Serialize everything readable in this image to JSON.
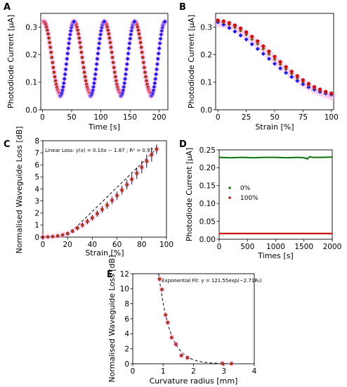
{
  "chart_data": [
    {
      "panel_label": "A",
      "type": "scatter",
      "xlabel": "Time [s]",
      "ylabel": "Photodiode Current [µA]",
      "xlim": [
        -3,
        215
      ],
      "ylim": [
        0,
        0.35
      ],
      "xticks": [
        0,
        50,
        100,
        150,
        200
      ],
      "xtick_labels": [
        "0",
        "50",
        "100",
        "150",
        "200"
      ],
      "yticks": [
        0,
        0.1,
        0.2,
        0.3
      ],
      "ytick_labels": [
        "0.0",
        "0.1",
        "0.2",
        "0.3"
      ],
      "cycle": {
        "period": 52,
        "peak_times": [
          2,
          54,
          106,
          158,
          210
        ],
        "trough_times": [
          30,
          82,
          134,
          186
        ],
        "peak_value": 0.32,
        "red_trough_value": 0.06,
        "blue_trough_value": 0.05,
        "samples_per_segment": 22
      },
      "series": [
        {
          "role": "loading",
          "color": "#cc1111",
          "marker": "circle",
          "shadow": "#f4a7e8"
        },
        {
          "role": "loading-overlay",
          "color": "#7a5a10",
          "marker": "diamond"
        },
        {
          "role": "unloading",
          "color": "#1a1ae6",
          "marker": "diamond",
          "shadow": "#f4a7e8"
        }
      ]
    },
    {
      "panel_label": "B",
      "type": "scatter",
      "xlabel": "Strain [%]",
      "ylabel": "Photodiode Current [µA]",
      "xlim": [
        -2,
        102
      ],
      "ylim": [
        0,
        0.35
      ],
      "xticks": [
        0,
        25,
        50,
        75,
        100
      ],
      "xtick_labels": [
        "0",
        "25",
        "50",
        "75",
        "100"
      ],
      "yticks": [
        0,
        0.1,
        0.2,
        0.3
      ],
      "ytick_labels": [
        "0.0",
        "0.1",
        "0.2",
        "0.3"
      ],
      "x": [
        0,
        5,
        10,
        15,
        20,
        25,
        30,
        35,
        40,
        45,
        50,
        55,
        60,
        65,
        70,
        75,
        80,
        85,
        90,
        95,
        100
      ],
      "series": [
        {
          "role": "upper",
          "color": "#cc1111",
          "values": [
            0.325,
            0.322,
            0.316,
            0.307,
            0.296,
            0.282,
            0.266,
            0.249,
            0.231,
            0.212,
            0.193,
            0.174,
            0.156,
            0.139,
            0.123,
            0.108,
            0.095,
            0.083,
            0.074,
            0.066,
            0.06
          ]
        },
        {
          "role": "middle",
          "color": "#7a5a10",
          "values": [
            0.322,
            0.317,
            0.309,
            0.299,
            0.287,
            0.273,
            0.256,
            0.239,
            0.221,
            0.202,
            0.183,
            0.165,
            0.147,
            0.131,
            0.115,
            0.101,
            0.089,
            0.078,
            0.069,
            0.062,
            0.057
          ]
        },
        {
          "role": "lower",
          "color": "#1a1ae6",
          "values": [
            0.318,
            0.309,
            0.297,
            0.284,
            0.27,
            0.255,
            0.238,
            0.221,
            0.203,
            0.185,
            0.167,
            0.15,
            0.134,
            0.119,
            0.105,
            0.093,
            0.082,
            0.073,
            0.065,
            0.059,
            0.055
          ]
        }
      ]
    },
    {
      "panel_label": "C",
      "type": "scatter",
      "xlabel": "Strain [%]",
      "ylabel": "Normalised Waveguide Loss [dB]",
      "xlim": [
        0,
        100
      ],
      "ylim": [
        0,
        8
      ],
      "xticks": [
        0,
        20,
        40,
        60,
        80,
        100
      ],
      "xtick_labels": [
        "0",
        "20",
        "40",
        "60",
        "80",
        "100"
      ],
      "yticks": [
        0,
        1,
        2,
        3,
        4,
        5,
        6,
        7,
        8
      ],
      "ytick_labels": [
        "0",
        "1",
        "2",
        "3",
        "4",
        "5",
        "6",
        "7",
        "8"
      ],
      "annotation": "Linear Loss: y(x) = 0.10x − 1.87 ; R² = 0.97",
      "fit": {
        "slope": 0.1,
        "intercept": -1.87,
        "x_range": [
          20,
          92
        ],
        "style": "dashed"
      },
      "x": [
        0,
        4,
        8,
        12,
        16,
        20,
        24,
        28,
        32,
        36,
        40,
        44,
        48,
        52,
        56,
        60,
        64,
        68,
        72,
        76,
        80,
        84,
        88,
        92
      ],
      "values": [
        0.0,
        0.02,
        0.05,
        0.1,
        0.18,
        0.3,
        0.5,
        0.75,
        1.0,
        1.3,
        1.6,
        1.95,
        2.3,
        2.65,
        3.05,
        3.45,
        3.9,
        4.35,
        4.8,
        5.3,
        5.8,
        6.3,
        6.85,
        7.3
      ],
      "errors": [
        0.05,
        0.05,
        0.06,
        0.08,
        0.1,
        0.12,
        0.15,
        0.18,
        0.2,
        0.22,
        0.24,
        0.26,
        0.28,
        0.3,
        0.32,
        0.34,
        0.36,
        0.4,
        0.44,
        0.48,
        0.52,
        0.56,
        0.6,
        0.4
      ],
      "colors": {
        "points": "#cc1111",
        "overlay": "#7a5a10",
        "shadow": "#f4a7e8",
        "error_bars": "#000000"
      }
    },
    {
      "panel_label": "D",
      "type": "line",
      "xlabel": "Times [s]",
      "ylabel": "Photodiode Current [µA]",
      "xlim": [
        0,
        2000
      ],
      "ylim": [
        0,
        0.25
      ],
      "xticks": [
        0,
        500,
        1000,
        1500,
        2000
      ],
      "xtick_labels": [
        "0",
        "500",
        "1000",
        "1500",
        "2000"
      ],
      "yticks": [
        0,
        0.05,
        0.1,
        0.15,
        0.2,
        0.25
      ],
      "ytick_labels": [
        "0.00",
        "0.05",
        "0.10",
        "0.15",
        "0.20",
        "0.25"
      ],
      "legend_placement": "center-left",
      "series": [
        {
          "name": "0%",
          "color": "#1a7a1a",
          "x": [
            0,
            200,
            400,
            600,
            800,
            1000,
            1200,
            1400,
            1500,
            1560,
            1600,
            1650,
            1800,
            2000
          ],
          "values": [
            0.229,
            0.228,
            0.229,
            0.228,
            0.229,
            0.229,
            0.228,
            0.229,
            0.228,
            0.225,
            0.231,
            0.229,
            0.229,
            0.23
          ]
        },
        {
          "name": "100%",
          "color": "#cc1111",
          "x": [
            0,
            500,
            1000,
            1500,
            2000
          ],
          "values": [
            0.016,
            0.016,
            0.016,
            0.016,
            0.016
          ]
        }
      ]
    },
    {
      "panel_label": "E",
      "type": "scatter",
      "xlabel": "Curvature radius [mm]",
      "ylabel": "Normalised Waveguide Loss [dB]",
      "xlim": [
        0,
        4
      ],
      "ylim": [
        0,
        12
      ],
      "xticks": [
        0,
        1,
        2,
        3,
        4
      ],
      "xtick_labels": [
        "0",
        "1",
        "2",
        "3",
        "4"
      ],
      "yticks": [
        0,
        2,
        4,
        6,
        8,
        10,
        12
      ],
      "ytick_labels": [
        "0",
        "2",
        "4",
        "6",
        "8",
        "10",
        "12"
      ],
      "annotation": "Exponential Fit: y = 121.55exp(−2.71R₀)",
      "fit": {
        "a": 121.55,
        "b": -2.71,
        "x_range": [
          0.85,
          3.3
        ],
        "style": "dashed"
      },
      "x": [
        0.88,
        0.96,
        1.08,
        1.15,
        1.28,
        1.42,
        1.6,
        1.8,
        2.95,
        3.25
      ],
      "values": [
        11.3,
        9.9,
        6.5,
        5.5,
        3.5,
        2.6,
        1.1,
        0.8,
        0.05,
        0.02
      ],
      "colors": {
        "points": "#cc1111",
        "overlay": "#7a5a10",
        "shadow": "#f4a7e8"
      }
    }
  ]
}
